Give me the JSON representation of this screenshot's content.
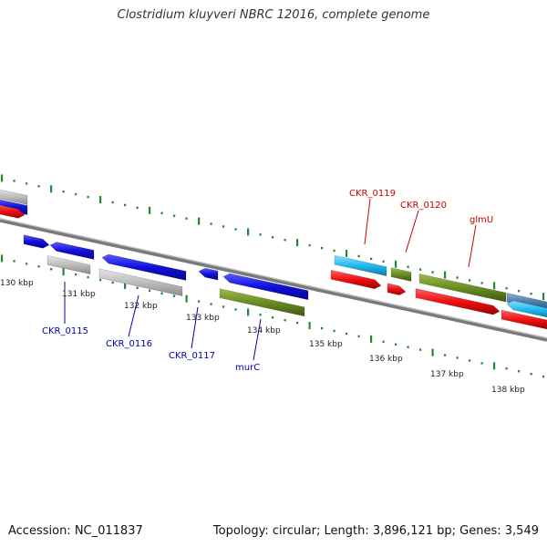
{
  "title": "Clostridium kluyveri NBRC 12016, complete genome",
  "footer": {
    "accession": "Accession: NC_011837",
    "summary": "Topology: circular; Length: 3,896,121 bp; Genes: 3,549"
  },
  "colors": {
    "forward_cds": "#1010dd",
    "red_cds": "#ee1010",
    "gray_cds": "#bbbbbb",
    "olive_cds": "#6a8c22",
    "cyan_cds": "#22bbee",
    "steel_cds": "#4a7aa8",
    "ruler_dot": "#228833",
    "axis": "#777777",
    "blue_label": "#0000aa",
    "red_label": "#cc0000"
  },
  "ruler": {
    "ticks": [
      "130 kbp",
      "131 kbp",
      "132 kbp",
      "133 kbp",
      "134 kbp",
      "135 kbp",
      "136 kbp",
      "137 kbp",
      "138 kbp"
    ]
  },
  "gene_labels": [
    {
      "text": "CKR_0115",
      "color": "blue"
    },
    {
      "text": "CKR_0116",
      "color": "blue"
    },
    {
      "text": "CKR_0117",
      "color": "blue"
    },
    {
      "text": "murC",
      "color": "blue"
    },
    {
      "text": "CKR_0119",
      "color": "red"
    },
    {
      "text": "CKR_0120",
      "color": "red"
    },
    {
      "text": "glmU",
      "color": "red"
    }
  ]
}
